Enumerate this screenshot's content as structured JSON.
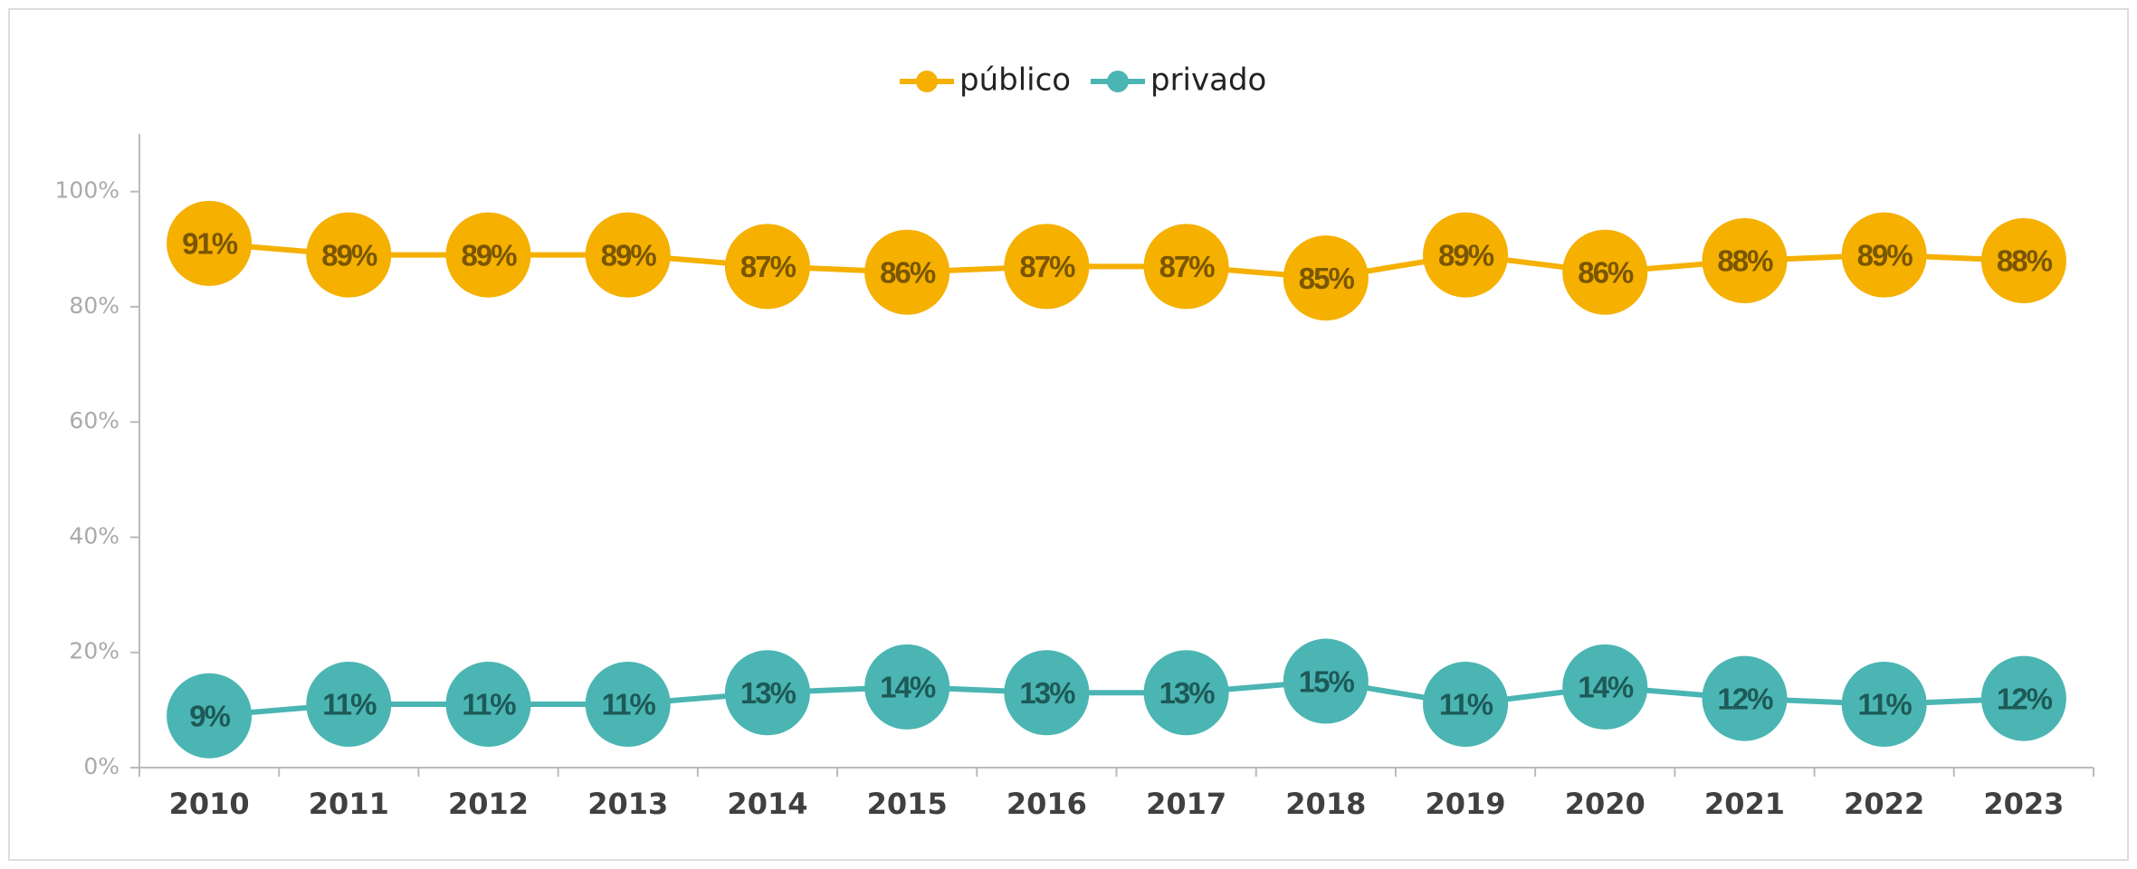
{
  "chart_data": {
    "type": "line",
    "categories": [
      "2010",
      "2011",
      "2012",
      "2013",
      "2014",
      "2015",
      "2016",
      "2017",
      "2018",
      "2019",
      "2020",
      "2021",
      "2022",
      "2023"
    ],
    "series": [
      {
        "name": "público",
        "color": "#F5B000",
        "label_color": "#7a5600",
        "values": [
          91,
          89,
          89,
          89,
          87,
          86,
          87,
          87,
          85,
          89,
          86,
          88,
          89,
          88
        ],
        "value_labels": [
          "91%",
          "89%",
          "89%",
          "89%",
          "87%",
          "86%",
          "87%",
          "87%",
          "85%",
          "89%",
          "86%",
          "88%",
          "89%",
          "88%"
        ]
      },
      {
        "name": "privado",
        "color": "#4BB5B3",
        "label_color": "#1d5a58",
        "values": [
          9,
          11,
          11,
          11,
          13,
          14,
          13,
          13,
          15,
          11,
          14,
          12,
          11,
          12
        ],
        "value_labels": [
          "9%",
          "11%",
          "11%",
          "11%",
          "13%",
          "14%",
          "13%",
          "13%",
          "15%",
          "11%",
          "14%",
          "12%",
          "11%",
          "12%"
        ]
      }
    ],
    "ylim": [
      0,
      110
    ],
    "yticks": [
      {
        "value": 0,
        "label": "0%"
      },
      {
        "value": 20,
        "label": "20%"
      },
      {
        "value": 40,
        "label": "40%"
      },
      {
        "value": 60,
        "label": "60%"
      },
      {
        "value": 80,
        "label": "80%"
      },
      {
        "value": 100,
        "label": "100%"
      }
    ],
    "grid": false,
    "legend": "top"
  }
}
